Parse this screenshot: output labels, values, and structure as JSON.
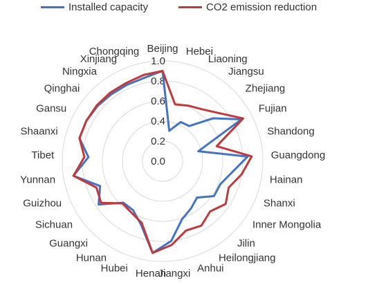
{
  "colors": {
    "installed": "#4472C4",
    "co2": "#C0393B",
    "grid": "#D9D9D9",
    "text": "#333333"
  },
  "chart_data": {
    "type": "radar",
    "categories": [
      "Beijing",
      "Hebei",
      "Liaoning",
      "Jiangsu",
      "Zhejiang",
      "Fujian",
      "Shandong",
      "Guangdong",
      "Hainan",
      "Shanxi",
      "Inner Mongolia",
      "Jilin",
      "Heilongjiang",
      "Anhui",
      "Jiangxi",
      "Henan",
      "Hubei",
      "Hunan",
      "Guangxi",
      "Sichuan",
      "Guizhou",
      "Yunnan",
      "Tibet",
      "Shaanxi",
      "Gansu",
      "Qinghai",
      "Ningxia",
      "Xinjiang",
      "Chongqing"
    ],
    "series": [
      {
        "name": "Installed capacity",
        "values": [
          0.9,
          0.31,
          0.43,
          0.44,
          0.66,
          0.89,
          0.37,
          0.85,
          0.7,
          0.62,
          0.62,
          0.5,
          0.55,
          0.61,
          0.8,
          0.92,
          0.67,
          0.57,
          0.57,
          0.77,
          0.67,
          0.9,
          0.74,
          0.86,
          0.86,
          0.85,
          0.84,
          0.84,
          0.85
        ]
      },
      {
        "name": "CO2 emission reduction",
        "values": [
          0.9,
          0.58,
          0.61,
          0.65,
          0.74,
          0.91,
          0.56,
          0.89,
          0.8,
          0.71,
          0.76,
          0.69,
          0.75,
          0.73,
          0.84,
          0.92,
          0.65,
          0.6,
          0.58,
          0.74,
          0.71,
          0.9,
          0.78,
          0.86,
          0.86,
          0.86,
          0.86,
          0.86,
          0.88
        ]
      }
    ],
    "rlim": [
      0.0,
      1.0
    ],
    "ticks": [
      "0.0",
      "0.2",
      "0.4",
      "0.6",
      "0.8",
      "1.0"
    ],
    "legend_position": "top",
    "grid": true
  }
}
